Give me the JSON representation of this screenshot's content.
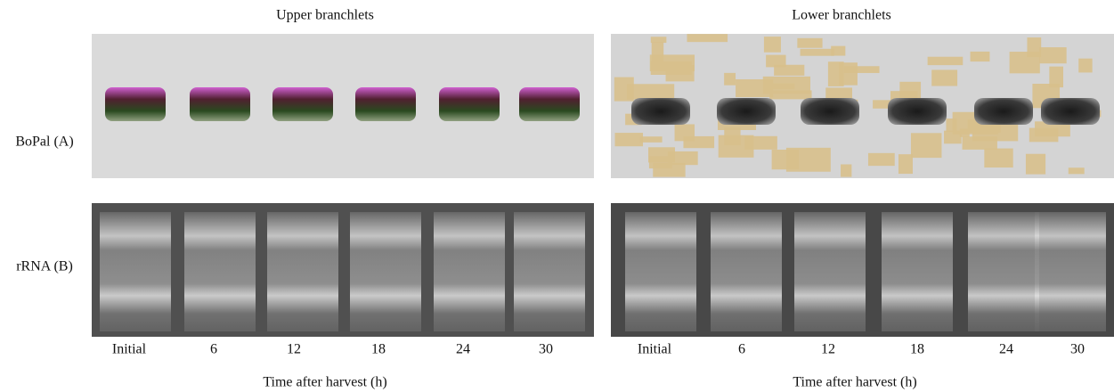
{
  "rows": [
    "BoPal (A)",
    "rRNA (B)"
  ],
  "panels": [
    {
      "title": "Upper branchlets",
      "lanes": [
        "Initial",
        "6",
        "12",
        "18",
        "24",
        "30"
      ],
      "xlabel": "Time after harvest (h)"
    },
    {
      "title": "Lower branchlets",
      "lanes": [
        "Initial",
        "6",
        "12",
        "18",
        "24",
        "30"
      ],
      "xlabel": "Time after harvest (h)"
    }
  ]
}
